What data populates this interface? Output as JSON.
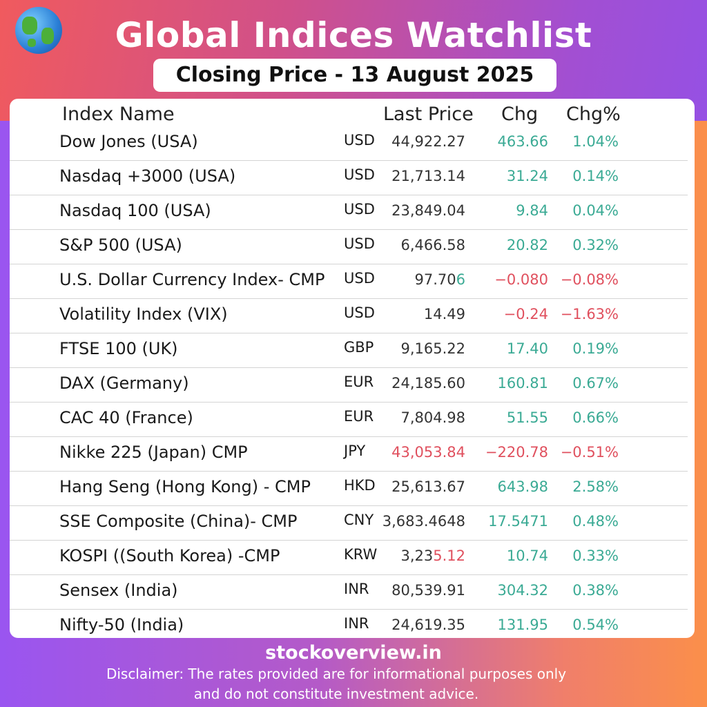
{
  "header": {
    "title": "Global Indices Watchlist",
    "subtitle": "Closing Price - 13 August 2025"
  },
  "columns": {
    "name": "Index Name",
    "price": "Last Price",
    "chg": "Chg",
    "pct": "Chg%"
  },
  "colors": {
    "positive": "#3aaa94",
    "negative": "#e0505e"
  },
  "rows": [
    {
      "name": "Dow Jones (USA)",
      "currency": "USD",
      "price": "44,922.27",
      "price_tail": "",
      "chg": "463.66",
      "pct": "1.04%",
      "dir": "pos"
    },
    {
      "name": "Nasdaq +3000 (USA)",
      "currency": "USD",
      "price": "21,713.14",
      "price_tail": "",
      "chg": "31.24",
      "pct": "0.14%",
      "dir": "pos"
    },
    {
      "name": "Nasdaq 100 (USA)",
      "currency": "USD",
      "price": "23,849.04",
      "price_tail": "",
      "chg": "9.84",
      "pct": "0.04%",
      "dir": "pos"
    },
    {
      "name": "S&P 500 (USA)",
      "currency": "USD",
      "price": "6,466.58",
      "price_tail": "",
      "chg": "20.82",
      "pct": "0.32%",
      "dir": "pos"
    },
    {
      "name": "U.S. Dollar Currency Index- CMP",
      "currency": "USD",
      "price": "97.70",
      "price_tail": "6",
      "tail_dir": "pos",
      "chg": "−0.080",
      "pct": "−0.08%",
      "dir": "neg"
    },
    {
      "name": "Volatility Index (VIX)",
      "currency": "USD",
      "price": "14.49",
      "price_tail": "",
      "chg": "−0.24",
      "pct": "−1.63%",
      "dir": "neg"
    },
    {
      "name": "FTSE 100 (UK)",
      "currency": "GBP",
      "price": "9,165.22",
      "price_tail": "",
      "chg": "17.40",
      "pct": "0.19%",
      "dir": "pos"
    },
    {
      "name": "DAX (Germany)",
      "currency": "EUR",
      "price": "24,185.60",
      "price_tail": "",
      "chg": "160.81",
      "pct": "0.67%",
      "dir": "pos"
    },
    {
      "name": "CAC 40 (France)",
      "currency": "EUR",
      "price": "7,804.98",
      "price_tail": "",
      "chg": "51.55",
      "pct": "0.66%",
      "dir": "pos"
    },
    {
      "name": "Nikke 225 (Japan) CMP",
      "currency": "JPY",
      "price": "",
      "price_tail": "43,053.84",
      "tail_dir": "neg",
      "chg": "−220.78",
      "pct": "−0.51%",
      "dir": "neg"
    },
    {
      "name": "Hang Seng (Hong Kong) - CMP",
      "currency": "HKD",
      "price": "25,613.67",
      "price_tail": "",
      "chg": "643.98",
      "pct": "2.58%",
      "dir": "pos"
    },
    {
      "name": "SSE Composite (China)- CMP",
      "currency": "CNY",
      "price": "3,683.4648",
      "price_tail": "",
      "chg": "17.5471",
      "pct": "0.48%",
      "dir": "pos"
    },
    {
      "name": "KOSPI ((South Korea) -CMP",
      "currency": "KRW",
      "price": "3,23",
      "price_tail": "5.12",
      "tail_dir": "neg",
      "chg": "10.74",
      "pct": "0.33%",
      "dir": "pos"
    },
    {
      "name": "Sensex (India)",
      "currency": "INR",
      "price": "80,539.91",
      "price_tail": "",
      "chg": "304.32",
      "pct": "0.38%",
      "dir": "pos"
    },
    {
      "name": "Nifty-50 (India)",
      "currency": "INR",
      "price": "24,619.35",
      "price_tail": "",
      "chg": "131.95",
      "pct": "0.54%",
      "dir": "pos"
    }
  ],
  "footer": {
    "site": "stockoverview.in",
    "disclaimer_1": "Disclaimer: The rates provided are for informational purposes only",
    "disclaimer_2": "and do not constitute investment advice."
  }
}
